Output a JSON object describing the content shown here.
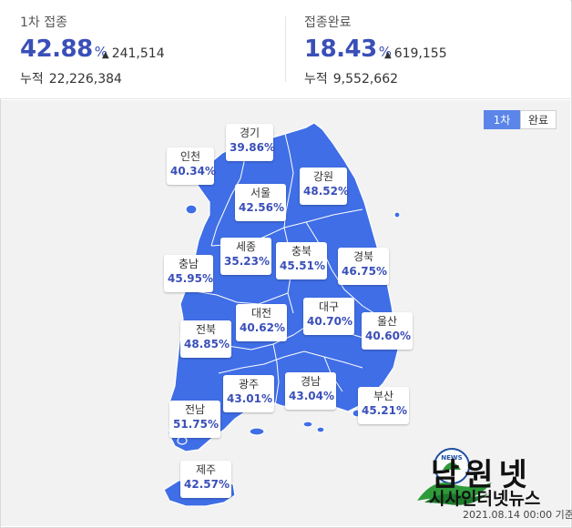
{
  "first_dose": {
    "label": "1차 접종",
    "percent": "42.88",
    "percent_symbol": "%",
    "delta": "241,514",
    "cumulative_label": "누적",
    "cumulative": "22,226,384"
  },
  "full_dose": {
    "label": "접종완료",
    "percent": "18.43",
    "percent_symbol": "%",
    "delta": "619,155",
    "cumulative_label": "누적",
    "cumulative": "9,552,662"
  },
  "toggle": {
    "first": "1차",
    "complete": "완료",
    "active": "1차"
  },
  "regions": {
    "gyeonggi": {
      "name": "경기",
      "value": "39.86%"
    },
    "incheon": {
      "name": "인천",
      "value": "40.34%"
    },
    "seoul": {
      "name": "서울",
      "value": "42.56%"
    },
    "gangwon": {
      "name": "강원",
      "value": "48.52%"
    },
    "sejong": {
      "name": "세종",
      "value": "35.23%"
    },
    "chungbuk": {
      "name": "충북",
      "value": "45.51%"
    },
    "gyeongbuk": {
      "name": "경북",
      "value": "46.75%"
    },
    "chungnam": {
      "name": "충남",
      "value": "45.95%"
    },
    "daejeon": {
      "name": "대전",
      "value": "40.62%"
    },
    "daegu": {
      "name": "대구",
      "value": "40.70%"
    },
    "ulsan": {
      "name": "울산",
      "value": "40.60%"
    },
    "jeonbuk": {
      "name": "전북",
      "value": "48.85%"
    },
    "gwangju": {
      "name": "광주",
      "value": "43.01%"
    },
    "gyeongnam": {
      "name": "경남",
      "value": "43.04%"
    },
    "busan": {
      "name": "부산",
      "value": "45.21%"
    },
    "jeonnam": {
      "name": "전남",
      "value": "51.75%"
    },
    "jeju": {
      "name": "제주",
      "value": "42.57%"
    }
  },
  "colors": {
    "map_fill": "#3f6ee6",
    "accent": "#3a4fb8",
    "toggle_active": "#5b85e8"
  },
  "watermark": {
    "title": "남원넷",
    "subtitle": "시사인터넷뉴스",
    "emblem_text": "NEWS"
  },
  "timestamp": "2021.08.14 00:00 기준"
}
